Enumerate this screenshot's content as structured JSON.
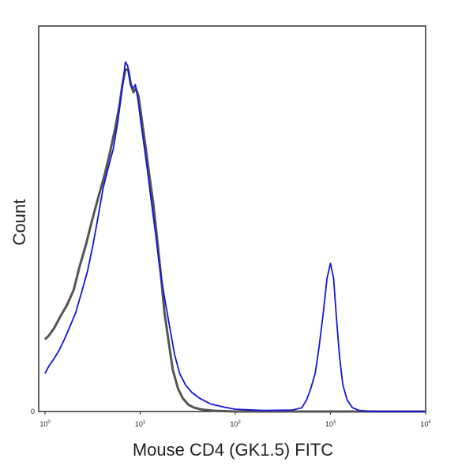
{
  "chart_data": {
    "type": "line",
    "title": "",
    "xlabel": "Mouse CD4 (GK1.5) FITC",
    "ylabel": "Count",
    "x_scale": "log",
    "xlim": [
      1,
      10000
    ],
    "ylim": [
      0,
      1
    ],
    "grid": false,
    "legend": "none",
    "x_ticks": [
      {
        "value": 1,
        "base": "10",
        "exp": "0"
      },
      {
        "value": 10,
        "base": "10",
        "exp": "1"
      },
      {
        "value": 100,
        "base": "10",
        "exp": "2"
      },
      {
        "value": 1000,
        "base": "10",
        "exp": "3"
      },
      {
        "value": 10000,
        "base": "10",
        "exp": "4"
      }
    ],
    "y_zero_label": "0",
    "series": [
      {
        "color": "#555555",
        "x": [
          1,
          1.1,
          1.25,
          1.45,
          1.7,
          2.0,
          2.3,
          2.7,
          3.1,
          3.6,
          4.2,
          4.8,
          5.4,
          6.0,
          6.5,
          7.0,
          7.5,
          8.0,
          8.5,
          9.0,
          9.6,
          10.5,
          11.5,
          12.5,
          13.7,
          15,
          16.5,
          18,
          20,
          22,
          25,
          28,
          32,
          37,
          45,
          60,
          100,
          1000,
          10000
        ],
        "y": [
          0.19,
          0.2,
          0.22,
          0.25,
          0.28,
          0.32,
          0.38,
          0.44,
          0.5,
          0.56,
          0.62,
          0.68,
          0.74,
          0.8,
          0.86,
          0.9,
          0.9,
          0.86,
          0.84,
          0.85,
          0.83,
          0.76,
          0.69,
          0.62,
          0.55,
          0.46,
          0.36,
          0.26,
          0.18,
          0.11,
          0.06,
          0.035,
          0.018,
          0.01,
          0.005,
          0.002,
          0.0,
          0.0,
          0.0
        ]
      },
      {
        "color": "#1515d8",
        "x": [
          1,
          1.1,
          1.25,
          1.4,
          1.6,
          1.8,
          2.1,
          2.4,
          2.8,
          3.2,
          3.6,
          4.1,
          4.6,
          5.2,
          5.8,
          6.4,
          7.0,
          7.4,
          7.9,
          8.4,
          8.9,
          9.5,
          10.2,
          11,
          12,
          13,
          14.5,
          16,
          18,
          20.5,
          23,
          26,
          30,
          35,
          42,
          55,
          75,
          100,
          200,
          400,
          500,
          560,
          620,
          690,
          760,
          840,
          920,
          1000,
          1080,
          1160,
          1250,
          1350,
          1500,
          1700,
          2000,
          3000,
          10000
        ],
        "y": [
          0.1,
          0.12,
          0.14,
          0.16,
          0.19,
          0.22,
          0.26,
          0.31,
          0.37,
          0.44,
          0.51,
          0.59,
          0.64,
          0.69,
          0.76,
          0.84,
          0.92,
          0.91,
          0.86,
          0.85,
          0.86,
          0.82,
          0.76,
          0.7,
          0.63,
          0.56,
          0.47,
          0.38,
          0.3,
          0.22,
          0.15,
          0.1,
          0.07,
          0.05,
          0.035,
          0.02,
          0.012,
          0.006,
          0.003,
          0.004,
          0.01,
          0.03,
          0.06,
          0.1,
          0.17,
          0.26,
          0.35,
          0.39,
          0.35,
          0.24,
          0.14,
          0.07,
          0.03,
          0.01,
          0.003,
          0.0,
          0.0
        ]
      }
    ]
  }
}
